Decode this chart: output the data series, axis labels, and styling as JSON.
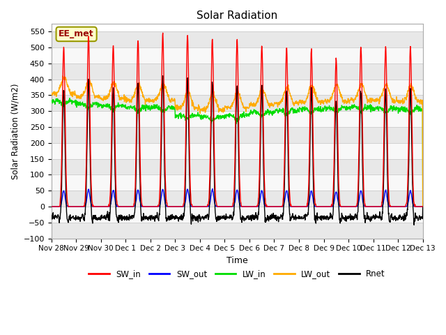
{
  "title": "Solar Radiation",
  "ylabel": "Solar Radiation (W/m2)",
  "xlabel": "Time",
  "ylim": [
    -100,
    575
  ],
  "yticks": [
    -100,
    -50,
    0,
    50,
    100,
    150,
    200,
    250,
    300,
    350,
    400,
    450,
    500,
    550
  ],
  "colors": {
    "SW_in": "#ff0000",
    "SW_out": "#0000ff",
    "LW_in": "#00dd00",
    "LW_out": "#ffaa00",
    "Rnet": "#000000"
  },
  "legend_labels": [
    "SW_in",
    "SW_out",
    "LW_in",
    "LW_out",
    "Rnet"
  ],
  "annotation_text": "EE_met",
  "background_color": "#ffffff",
  "plot_bg_color": "#ffffff",
  "grid_color": "#d0d0d0",
  "tick_labels": [
    "Nov 28",
    "Nov 29",
    "Nov 30",
    "Dec 1",
    "Dec 2",
    "Dec 3",
    "Dec 4",
    "Dec 5",
    "Dec 6",
    "Dec 7",
    "Dec 8",
    "Dec 9",
    "Dec 10",
    "Dec 11",
    "Dec 12",
    "Dec 13"
  ]
}
